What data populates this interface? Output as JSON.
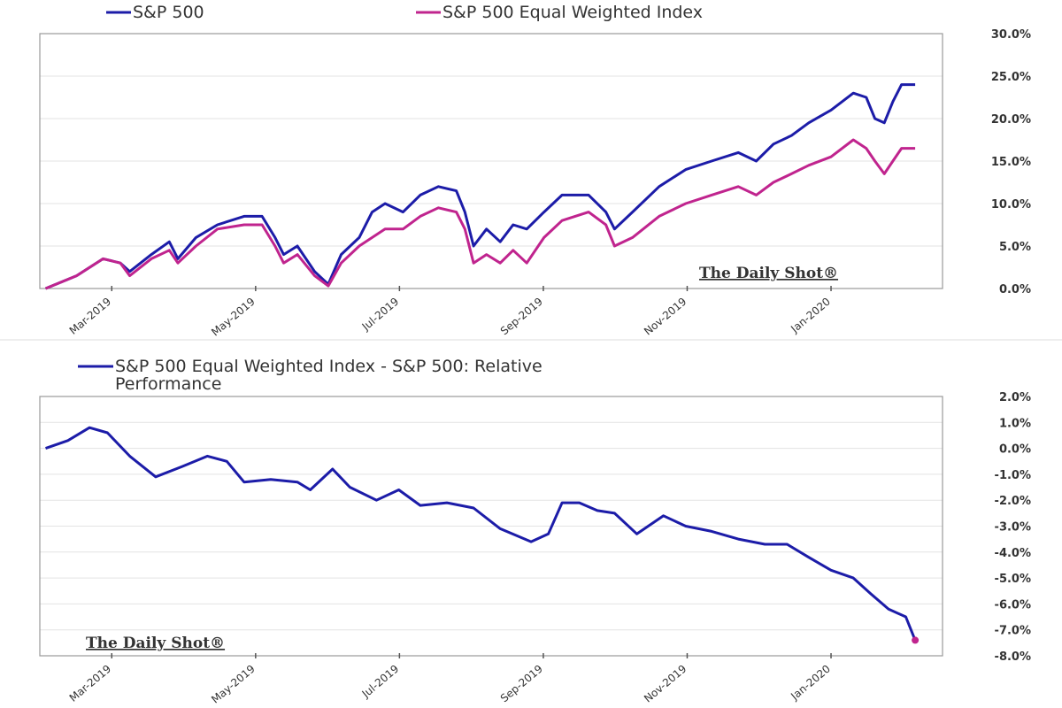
{
  "colors": {
    "sp500": "#1c1ca8",
    "equal": "#c0248e",
    "grid": "#e3e3e3",
    "frame": "#999999"
  },
  "chart_data": [
    {
      "type": "line",
      "title": "",
      "x_unit": "months since Jan 1, 2019",
      "xlim": [
        1.0,
        13.55
      ],
      "ylim": [
        0,
        30
      ],
      "xticks": [
        2,
        4,
        6,
        8,
        10,
        12
      ],
      "xtick_labels": [
        "Mar-2019",
        "May-2019",
        "Jul-2019",
        "Sep-2019",
        "Nov-2019",
        "Jan-2020"
      ],
      "yticks": [
        0,
        5,
        10,
        15,
        20,
        25,
        30
      ],
      "ytick_labels": [
        "0.0%",
        "5.0%",
        "10.0%",
        "15.0%",
        "20.0%",
        "25.0%",
        "30.0%"
      ],
      "grid": true,
      "legend_position": "top",
      "watermark": "The Daily Shot®",
      "x": [
        1.08,
        1.51,
        1.88,
        2.12,
        2.25,
        2.55,
        2.8,
        2.92,
        3.17,
        3.47,
        3.84,
        4.09,
        4.27,
        4.39,
        4.58,
        4.82,
        5.01,
        5.19,
        5.44,
        5.62,
        5.8,
        6.05,
        6.29,
        6.54,
        6.79,
        6.91,
        7.03,
        7.21,
        7.4,
        7.58,
        7.77,
        8.01,
        8.26,
        8.63,
        8.87,
        8.99,
        9.24,
        9.61,
        9.98,
        10.34,
        10.71,
        10.96,
        11.2,
        11.45,
        11.69,
        12.0,
        12.31,
        12.49,
        12.61,
        12.74,
        12.86,
        12.98,
        13.17
      ],
      "series": [
        {
          "name": "S&P 500",
          "color_key": "sp500",
          "values": [
            0,
            1.5,
            3.5,
            3,
            2,
            4,
            5.5,
            3.5,
            6,
            7.5,
            8.5,
            8.5,
            6,
            4,
            5,
            2,
            0.5,
            4,
            6,
            9,
            10,
            9,
            11,
            12,
            11.5,
            9,
            5,
            7,
            5.5,
            7.5,
            7,
            9,
            11,
            11,
            9,
            7,
            9,
            12,
            14,
            15,
            16,
            15,
            17,
            18,
            19.5,
            21,
            23,
            22.5,
            20,
            19.5,
            22,
            24,
            24
          ]
        },
        {
          "name": "S&P 500 Equal Weighted Index",
          "color_key": "equal",
          "values": [
            0,
            1.5,
            3.5,
            3,
            1.5,
            3.5,
            4.5,
            3,
            5,
            7,
            7.5,
            7.5,
            5,
            3,
            4,
            1.5,
            0.3,
            3,
            5,
            6,
            7,
            7,
            8.5,
            9.5,
            9,
            7,
            3,
            4,
            3,
            4.5,
            3,
            6,
            8,
            9,
            7.5,
            5,
            6,
            8.5,
            10,
            11,
            12,
            11,
            12.5,
            13.5,
            14.5,
            15.5,
            17.5,
            16.5,
            15,
            13.5,
            15,
            16.5,
            16.5
          ]
        }
      ]
    },
    {
      "type": "line",
      "title": "",
      "x_unit": "months since Jan 1, 2019",
      "xlim": [
        1.0,
        13.55
      ],
      "ylim": [
        -8,
        2
      ],
      "xticks": [
        2,
        4,
        6,
        8,
        10,
        12
      ],
      "xtick_labels": [
        "Mar-2019",
        "May-2019",
        "Jul-2019",
        "Sep-2019",
        "Nov-2019",
        "Jan-2020"
      ],
      "yticks": [
        -8,
        -7,
        -6,
        -5,
        -4,
        -3,
        -2,
        -1,
        0,
        1,
        2
      ],
      "ytick_labels": [
        "-8.0%",
        "-7.0%",
        "-6.0%",
        "-5.0%",
        "-4.0%",
        "-3.0%",
        "-2.0%",
        "-1.0%",
        "0.0%",
        "1.0%",
        "2.0%"
      ],
      "grid": true,
      "legend_position": "top",
      "watermark": "The Daily Shot®",
      "x": [
        1.08,
        1.39,
        1.69,
        1.94,
        2.25,
        2.61,
        2.98,
        3.33,
        3.6,
        3.84,
        4.21,
        4.58,
        4.76,
        5.07,
        5.31,
        5.68,
        5.99,
        6.29,
        6.66,
        7.03,
        7.4,
        7.83,
        8.07,
        8.26,
        8.5,
        8.75,
        8.99,
        9.3,
        9.67,
        9.98,
        10.34,
        10.71,
        11.08,
        11.39,
        11.69,
        12.0,
        12.31,
        12.55,
        12.8,
        13.04,
        13.17
      ],
      "series": [
        {
          "name": "S&P 500 Equal Weighted Index - S&P 500:   Relative Performance",
          "legend_lines": [
            "S&P 500 Equal Weighted Index - S&P 500:   Relative",
            "Performance"
          ],
          "color_key": "sp500",
          "values": [
            0,
            0.3,
            0.8,
            0.6,
            -0.3,
            -1.1,
            -0.7,
            -0.3,
            -0.5,
            -1.3,
            -1.2,
            -1.3,
            -1.6,
            -0.8,
            -1.5,
            -2.0,
            -1.6,
            -2.2,
            -2.1,
            -2.3,
            -3.1,
            -3.6,
            -3.3,
            -2.1,
            -2.1,
            -2.4,
            -2.5,
            -3.3,
            -2.6,
            -3.0,
            -3.2,
            -3.5,
            -3.7,
            -3.7,
            -4.2,
            -4.7,
            -5.0,
            -5.6,
            -6.2,
            -6.5,
            -7.4
          ]
        }
      ]
    }
  ]
}
